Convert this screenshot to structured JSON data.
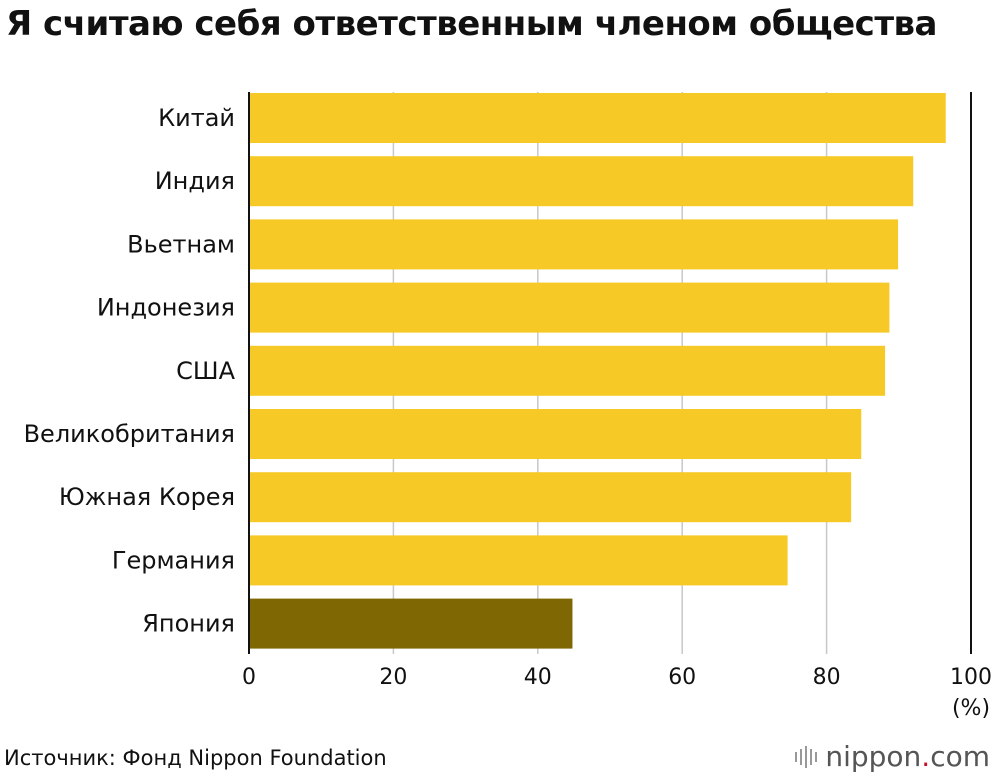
{
  "chart_data": {
    "type": "bar",
    "orientation": "horizontal",
    "title": "Я считаю себя ответственным членом общества",
    "categories": [
      "Китай",
      "Индия",
      "Вьетнам",
      "Индонезия",
      "США",
      "Великобритания",
      "Южная Корея",
      "Германия",
      "Япония"
    ],
    "values": [
      96.5,
      92.0,
      89.9,
      88.7,
      88.1,
      84.8,
      83.4,
      74.6,
      44.8
    ],
    "highlight_category": "Япония",
    "colors": {
      "bar": "#f7c926",
      "highlight": "#7f6804",
      "grid": "#c8c8c8",
      "axis": "#111111"
    },
    "xlim": [
      0,
      100
    ],
    "xticks": [
      "0",
      "20",
      "40",
      "60",
      "80",
      "100"
    ],
    "xunit": "(%)",
    "grid": true
  },
  "footer": {
    "source": "Источник: Фонд Nippon Foundation",
    "logo_name": "nippon",
    "logo_dot": ".",
    "logo_tld": "com"
  }
}
